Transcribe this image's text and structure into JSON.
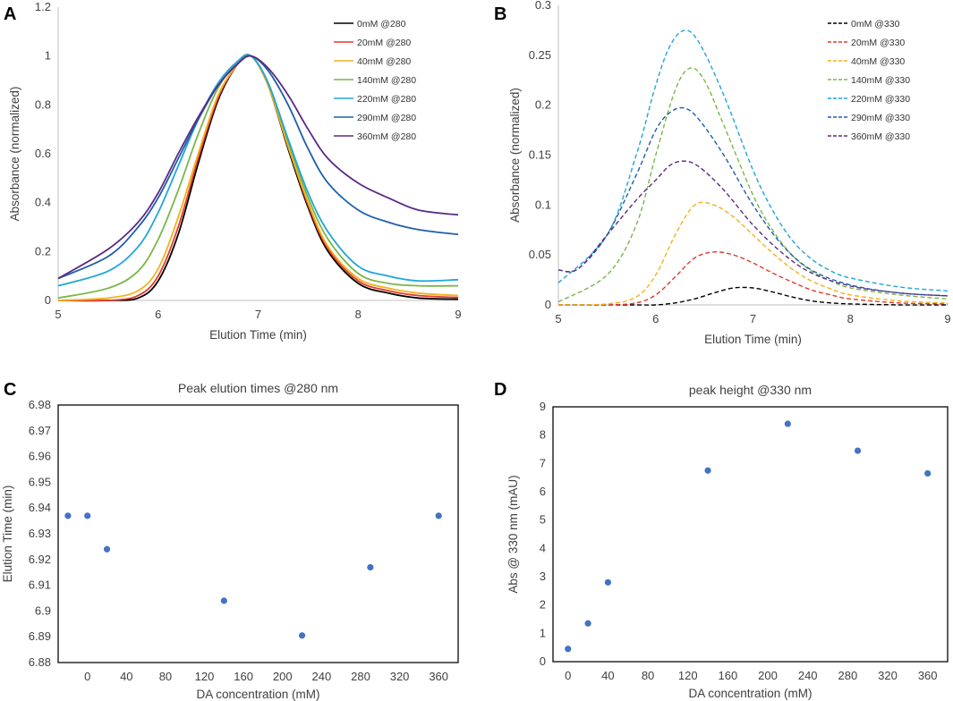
{
  "panels": [
    {
      "letter": "A",
      "chart_data": {
        "type": "line",
        "title": "",
        "xlabel": "Elution Time (min)",
        "ylabel": "Absorbance (normalized)",
        "xlim": [
          5,
          9
        ],
        "ylim": [
          0,
          1.2
        ],
        "xticks": [
          "5",
          "6",
          "7",
          "8",
          "9"
        ],
        "yticks": [
          "0",
          "0.2",
          "0.4",
          "0.6",
          "0.8",
          "1",
          "1.2"
        ],
        "line_style": "solid",
        "series": [
          {
            "name": "0mM @280",
            "color": "#000000",
            "x": [
              5,
              5.5,
              5.8,
              6,
              6.2,
              6.4,
              6.6,
              6.8,
              6.93,
              7.1,
              7.3,
              7.5,
              7.7,
              8,
              8.3,
              8.6,
              9
            ],
            "y": [
              0,
              0,
              0.01,
              0.08,
              0.27,
              0.56,
              0.82,
              0.97,
              1.0,
              0.88,
              0.62,
              0.38,
              0.2,
              0.07,
              0.03,
              0.01,
              0.005
            ]
          },
          {
            "name": "20mM @280",
            "color": "#e03a2e",
            "x": [
              5,
              5.5,
              5.8,
              6,
              6.2,
              6.4,
              6.6,
              6.8,
              6.93,
              7.1,
              7.3,
              7.5,
              7.7,
              8,
              8.3,
              8.6,
              9
            ],
            "y": [
              0,
              0,
              0.02,
              0.1,
              0.3,
              0.58,
              0.83,
              0.97,
              1.0,
              0.88,
              0.63,
              0.39,
              0.21,
              0.08,
              0.04,
              0.02,
              0.012
            ]
          },
          {
            "name": "40mM @280",
            "color": "#f2b21b",
            "x": [
              5,
              5.5,
              5.8,
              6,
              6.2,
              6.4,
              6.6,
              6.8,
              6.93,
              7.1,
              7.3,
              7.5,
              7.7,
              8,
              8.3,
              8.6,
              9
            ],
            "y": [
              0,
              0.01,
              0.04,
              0.13,
              0.34,
              0.6,
              0.84,
              0.97,
              1.0,
              0.88,
              0.63,
              0.4,
              0.22,
              0.09,
              0.05,
              0.03,
              0.02
            ]
          },
          {
            "name": "140mM @280",
            "color": "#7ab648",
            "x": [
              5,
              5.5,
              5.8,
              6,
              6.2,
              6.4,
              6.6,
              6.8,
              6.93,
              7.1,
              7.3,
              7.5,
              7.7,
              8,
              8.3,
              8.6,
              9
            ],
            "y": [
              0.01,
              0.05,
              0.12,
              0.25,
              0.45,
              0.68,
              0.87,
              0.98,
              1.0,
              0.89,
              0.65,
              0.42,
              0.25,
              0.11,
              0.07,
              0.06,
              0.06
            ]
          },
          {
            "name": "220mM @280",
            "color": "#1fa6d8",
            "x": [
              5,
              5.5,
              5.8,
              6,
              6.2,
              6.4,
              6.6,
              6.8,
              6.93,
              7.1,
              7.3,
              7.5,
              7.7,
              8,
              8.3,
              8.6,
              9
            ],
            "y": [
              0.06,
              0.12,
              0.22,
              0.36,
              0.55,
              0.74,
              0.89,
              0.98,
              1.0,
              0.89,
              0.66,
              0.44,
              0.28,
              0.14,
              0.1,
              0.08,
              0.085
            ]
          },
          {
            "name": "290mM @280",
            "color": "#1f5fa8",
            "x": [
              5,
              5.5,
              5.8,
              6,
              6.2,
              6.4,
              6.6,
              6.8,
              6.93,
              7.1,
              7.3,
              7.5,
              7.7,
              8,
              8.3,
              8.6,
              9
            ],
            "y": [
              0.09,
              0.18,
              0.3,
              0.42,
              0.58,
              0.74,
              0.88,
              0.97,
              1.0,
              0.94,
              0.8,
              0.62,
              0.48,
              0.37,
              0.32,
              0.29,
              0.27
            ]
          },
          {
            "name": "360mM @280",
            "color": "#5b2a86",
            "x": [
              5,
              5.5,
              5.8,
              6,
              6.2,
              6.4,
              6.6,
              6.8,
              6.93,
              7.1,
              7.3,
              7.5,
              7.7,
              8,
              8.3,
              8.6,
              9
            ],
            "y": [
              0.09,
              0.21,
              0.32,
              0.44,
              0.6,
              0.75,
              0.88,
              0.97,
              1.0,
              0.95,
              0.84,
              0.7,
              0.58,
              0.48,
              0.42,
              0.37,
              0.35
            ]
          }
        ]
      }
    },
    {
      "letter": "B",
      "chart_data": {
        "type": "line",
        "title": "",
        "xlabel": "Elution Time (min)",
        "ylabel": "Absorbance (normalized)",
        "xlim": [
          5,
          9
        ],
        "ylim": [
          0,
          0.3
        ],
        "xticks": [
          "5",
          "6",
          "7",
          "8",
          "9"
        ],
        "yticks": [
          "0",
          "0.05",
          "0.1",
          "0.15",
          "0.2",
          "0.25",
          "0.3"
        ],
        "line_style": "dashed",
        "series": [
          {
            "name": "0mM @330",
            "color": "#000000",
            "x": [
              5,
              5.5,
              5.8,
              6,
              6.2,
              6.4,
              6.6,
              6.8,
              7,
              7.2,
              7.4,
              7.6,
              7.8,
              8,
              8.5,
              9
            ],
            "y": [
              0,
              0,
              0,
              0,
              0.002,
              0.006,
              0.012,
              0.017,
              0.017,
              0.013,
              0.008,
              0.004,
              0.002,
              0.001,
              0,
              0
            ]
          },
          {
            "name": "20mM @330",
            "color": "#e03a2e",
            "x": [
              5,
              5.5,
              5.8,
              6,
              6.2,
              6.4,
              6.6,
              6.8,
              7,
              7.2,
              7.4,
              7.6,
              7.8,
              8,
              8.5,
              9
            ],
            "y": [
              0,
              0,
              0.002,
              0.01,
              0.028,
              0.047,
              0.053,
              0.05,
              0.042,
              0.032,
              0.023,
              0.015,
              0.01,
              0.006,
              0.002,
              0.001
            ]
          },
          {
            "name": "40mM @330",
            "color": "#f2b21b",
            "x": [
              5,
              5.5,
              5.8,
              6,
              6.2,
              6.4,
              6.6,
              6.8,
              7,
              7.2,
              7.4,
              7.6,
              7.8,
              8,
              8.5,
              9
            ],
            "y": [
              0,
              0.001,
              0.008,
              0.03,
              0.07,
              0.1,
              0.1,
              0.088,
              0.07,
              0.052,
              0.036,
              0.024,
              0.016,
              0.01,
              0.004,
              0.002
            ]
          },
          {
            "name": "140mM @330",
            "color": "#7ab648",
            "x": [
              5,
              5.5,
              5.8,
              6,
              6.2,
              6.35,
              6.5,
              6.7,
              7,
              7.2,
              7.4,
              7.6,
              7.8,
              8,
              8.5,
              9
            ],
            "y": [
              0.003,
              0.03,
              0.08,
              0.15,
              0.215,
              0.237,
              0.225,
              0.18,
              0.11,
              0.075,
              0.05,
              0.034,
              0.024,
              0.017,
              0.01,
              0.006
            ]
          },
          {
            "name": "220mM @330",
            "color": "#1fa6d8",
            "x": [
              5,
              5.5,
              5.8,
              6,
              6.15,
              6.3,
              6.45,
              6.7,
              7,
              7.2,
              7.4,
              7.6,
              7.8,
              8,
              8.5,
              9
            ],
            "y": [
              0.022,
              0.07,
              0.15,
              0.22,
              0.26,
              0.275,
              0.262,
              0.21,
              0.135,
              0.095,
              0.065,
              0.046,
              0.034,
              0.027,
              0.018,
              0.014
            ]
          },
          {
            "name": "290mM @330",
            "color": "#1f5fa8",
            "x": [
              5,
              5.2,
              5.5,
              5.8,
              6,
              6.15,
              6.3,
              6.45,
              6.7,
              7,
              7.3,
              7.6,
              8,
              8.5,
              9
            ],
            "y": [
              0.035,
              0.036,
              0.07,
              0.13,
              0.175,
              0.193,
              0.197,
              0.185,
              0.15,
              0.1,
              0.06,
              0.035,
              0.02,
              0.012,
              0.009
            ]
          },
          {
            "name": "360mM @330",
            "color": "#5b2a86",
            "x": [
              5,
              5.2,
              5.5,
              5.8,
              6,
              6.15,
              6.3,
              6.45,
              6.7,
              7,
              7.3,
              7.6,
              8,
              8.5,
              9
            ],
            "y": [
              0.035,
              0.036,
              0.07,
              0.105,
              0.125,
              0.14,
              0.144,
              0.138,
              0.115,
              0.08,
              0.052,
              0.032,
              0.019,
              0.012,
              0.009
            ]
          }
        ]
      }
    },
    {
      "letter": "C",
      "chart_data": {
        "type": "scatter",
        "title": "Peak elution times @280 nm",
        "xlabel": "DA concentration (mM)",
        "ylabel": "Elution Time (min)",
        "xlim": [
          -30,
          380
        ],
        "ylim": [
          6.88,
          6.98
        ],
        "xticks": [
          {
            "v": 0,
            "t": "0"
          },
          {
            "v": 40,
            "t": "40"
          },
          {
            "v": 80,
            "t": "80"
          },
          {
            "v": 120,
            "t": "120"
          },
          {
            "v": 160,
            "t": "160"
          },
          {
            "v": 200,
            "t": "200"
          },
          {
            "v": 240,
            "t": "240"
          },
          {
            "v": 280,
            "t": "280"
          },
          {
            "v": 320,
            "t": "320"
          },
          {
            "v": 360,
            "t": "360"
          }
        ],
        "yticks": [
          "6.88",
          "6.89",
          "6.9",
          "6.91",
          "6.92",
          "6.93",
          "6.94",
          "6.95",
          "6.96",
          "6.97",
          "6.98"
        ],
        "color": "#4472c4",
        "x": [
          -20,
          0,
          20,
          140,
          220,
          290,
          360
        ],
        "y": [
          6.937,
          6.937,
          6.924,
          6.904,
          6.8905,
          6.917,
          6.937
        ]
      }
    },
    {
      "letter": "D",
      "chart_data": {
        "type": "scatter",
        "title": "peak height @330 nm",
        "xlabel": "DA concentration (mM)",
        "ylabel": "Abs @ 330 nm (mAU)",
        "xlim": [
          -15,
          380
        ],
        "ylim": [
          0,
          9
        ],
        "xticks": [
          {
            "v": 0,
            "t": "0"
          },
          {
            "v": 40,
            "t": "40"
          },
          {
            "v": 80,
            "t": "80"
          },
          {
            "v": 120,
            "t": "120"
          },
          {
            "v": 160,
            "t": "160"
          },
          {
            "v": 200,
            "t": "200"
          },
          {
            "v": 240,
            "t": "240"
          },
          {
            "v": 280,
            "t": "280"
          },
          {
            "v": 320,
            "t": "320"
          },
          {
            "v": 360,
            "t": "360"
          }
        ],
        "yticks": [
          "0",
          "1",
          "2",
          "3",
          "4",
          "5",
          "6",
          "7",
          "8",
          "9"
        ],
        "color": "#4472c4",
        "x": [
          0,
          20,
          40,
          140,
          220,
          290,
          360
        ],
        "y": [
          0.45,
          1.35,
          2.8,
          6.75,
          8.4,
          7.45,
          6.65
        ]
      }
    }
  ]
}
